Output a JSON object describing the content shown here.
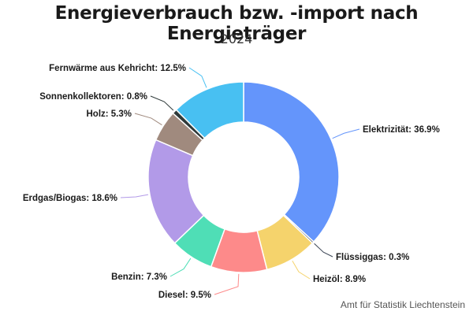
{
  "title": "Energieverbrauch bzw. -import nach Energieträger",
  "subtitle": "2024",
  "source": "Amt für Statistik Liechtenstein",
  "chart_data": {
    "type": "pie",
    "variant": "donut",
    "legend": "none",
    "slices": [
      {
        "name": "Elektrizität",
        "value": 36.9,
        "label": "Elektrizität: 36.9%",
        "color": "#6495fb"
      },
      {
        "name": "Flüssiggas",
        "value": 0.3,
        "label": "Flüssiggas: 0.3%",
        "color": "#3c4656"
      },
      {
        "name": "Heizöl",
        "value": 8.9,
        "label": "Heizöl: 8.9%",
        "color": "#f5d36c"
      },
      {
        "name": "Diesel",
        "value": 9.5,
        "label": "Diesel: 9.5%",
        "color": "#fd8a8a"
      },
      {
        "name": "Benzin",
        "value": 7.3,
        "label": "Benzin: 7.3%",
        "color": "#4fdeb6"
      },
      {
        "name": "Erdgas/Biogas",
        "value": 18.6,
        "label": "Erdgas/Biogas: 18.6%",
        "color": "#b29ae8"
      },
      {
        "name": "Holz",
        "value": 5.3,
        "label": "Holz: 5.3%",
        "color": "#a08a7e"
      },
      {
        "name": "Sonnenkollektoren",
        "value": 0.8,
        "label": "Sonnenkollektoren: 0.8%",
        "color": "#2f3a3a"
      },
      {
        "name": "Fernwärme aus Kehricht",
        "value": 12.5,
        "label": "Fernwärme aus Kehricht: 12.5%",
        "color": "#48c0f2"
      }
    ]
  }
}
